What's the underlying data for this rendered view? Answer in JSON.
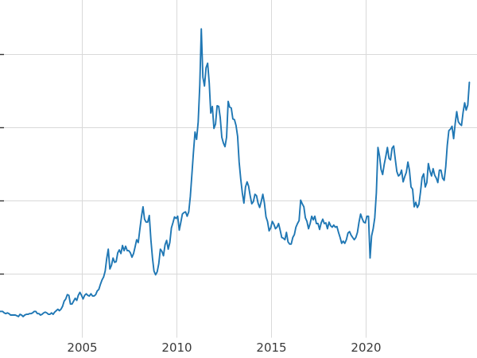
{
  "chart_data": {
    "type": "line",
    "title": "",
    "xlabel": "",
    "ylabel": "",
    "legend": "none",
    "grid": true,
    "x_ticks": [
      {
        "value": 2005,
        "label": "2005"
      },
      {
        "value": 2010,
        "label": "2010"
      },
      {
        "value": 2015,
        "label": "2015"
      },
      {
        "value": 2020,
        "label": "2020"
      }
    ],
    "y_gridline_values": [
      10,
      20,
      30,
      40
    ],
    "y_tick_labels_visible": false,
    "xlim": [
      2000.7,
      2025.9
    ],
    "ylim": [
      1.3,
      47.4
    ],
    "colors": {
      "line": "#1f77b4",
      "grid": "#d9d9d9",
      "tick_label": "#3a3a3a",
      "tick_mark": "#333333",
      "background": "#ffffff"
    },
    "series": [
      {
        "name": "",
        "interval": "monthly",
        "start_year": 2000,
        "start_month": 7,
        "values": [
          5.0,
          4.9,
          4.9,
          4.9,
          4.7,
          4.6,
          4.7,
          4.6,
          4.4,
          4.4,
          4.4,
          4.4,
          4.3,
          4.2,
          4.5,
          4.4,
          4.2,
          4.4,
          4.5,
          4.5,
          4.6,
          4.6,
          4.7,
          4.9,
          4.9,
          4.6,
          4.6,
          4.4,
          4.5,
          4.7,
          4.8,
          4.7,
          4.5,
          4.5,
          4.7,
          4.5,
          4.8,
          5.0,
          5.2,
          5.0,
          5.2,
          5.6,
          6.3,
          6.6,
          7.2,
          7.1,
          5.9,
          5.9,
          6.3,
          6.7,
          6.4,
          7.1,
          7.5,
          7.1,
          6.6,
          7.1,
          7.3,
          7.1,
          7.0,
          7.3,
          7.0,
          7.0,
          7.2,
          7.7,
          7.9,
          8.6,
          9.2,
          9.6,
          10.4,
          12.1,
          13.4,
          10.7,
          11.2,
          12.2,
          11.6,
          11.7,
          12.9,
          13.3,
          12.8,
          13.9,
          13.2,
          13.8,
          13.2,
          13.2,
          12.9,
          12.3,
          12.8,
          13.7,
          14.7,
          14.3,
          16.1,
          17.8,
          19.2,
          17.5,
          17.1,
          17.1,
          18.0,
          14.7,
          12.2,
          10.4,
          9.9,
          10.3,
          11.4,
          13.4,
          13.1,
          12.5,
          14.0,
          14.6,
          13.4,
          14.3,
          16.3,
          17.0,
          17.8,
          17.6,
          17.9,
          16.0,
          17.1,
          18.2,
          18.4,
          18.5,
          17.9,
          18.5,
          20.6,
          23.5,
          26.6,
          29.4,
          28.4,
          30.8,
          35.8,
          43.5,
          36.9,
          35.7,
          38.2,
          38.8,
          36.1,
          32.0,
          32.9,
          29.9,
          30.5,
          33.0,
          32.9,
          31.4,
          28.7,
          27.9,
          27.4,
          28.7,
          33.6,
          32.8,
          32.7,
          31.2,
          31.1,
          30.3,
          28.8,
          25.3,
          23.0,
          21.1,
          19.7,
          21.9,
          22.6,
          22.0,
          20.7,
          19.6,
          19.9,
          20.9,
          20.7,
          19.7,
          19.1,
          19.9,
          20.9,
          19.7,
          17.8,
          17.2,
          15.9,
          16.3,
          17.2,
          16.8,
          16.2,
          16.4,
          16.9,
          16.0,
          15.0,
          14.9,
          14.7,
          15.7,
          14.4,
          14.1,
          14.1,
          15.0,
          15.4,
          16.4,
          16.9,
          17.3,
          20.1,
          19.6,
          19.2,
          17.7,
          17.2,
          16.2,
          16.9,
          17.9,
          17.4,
          17.9,
          16.9,
          16.9,
          16.1,
          17.0,
          17.5,
          16.9,
          17.0,
          16.2,
          17.1,
          16.6,
          16.4,
          16.7,
          16.4,
          16.5,
          15.7,
          15.0,
          14.2,
          14.5,
          14.2,
          14.7,
          15.6,
          15.8,
          15.3,
          15.0,
          14.7,
          15.0,
          15.7,
          17.1,
          18.2,
          17.6,
          17.1,
          17.0,
          17.9,
          17.9,
          12.2,
          15.2,
          16.2,
          17.7,
          21.1,
          27.3,
          26.1,
          24.3,
          23.6,
          25.0,
          26.1,
          27.3,
          25.8,
          25.6,
          27.2,
          27.5,
          25.7,
          24.0,
          23.4,
          23.6,
          24.2,
          22.6,
          23.3,
          23.9,
          25.3,
          24.2,
          21.9,
          21.6,
          19.2,
          19.8,
          19.1,
          19.5,
          21.2,
          23.2,
          23.7,
          21.9,
          22.5,
          25.1,
          24.1,
          23.4,
          24.4,
          23.5,
          23.1,
          22.5,
          24.2,
          24.2,
          23.1,
          22.8,
          24.7,
          27.6,
          29.6,
          29.8,
          30.2,
          28.5,
          30.6,
          32.2,
          30.8,
          30.5,
          30.3,
          32.1,
          33.4,
          32.4,
          33.1,
          36.2
        ]
      }
    ]
  }
}
